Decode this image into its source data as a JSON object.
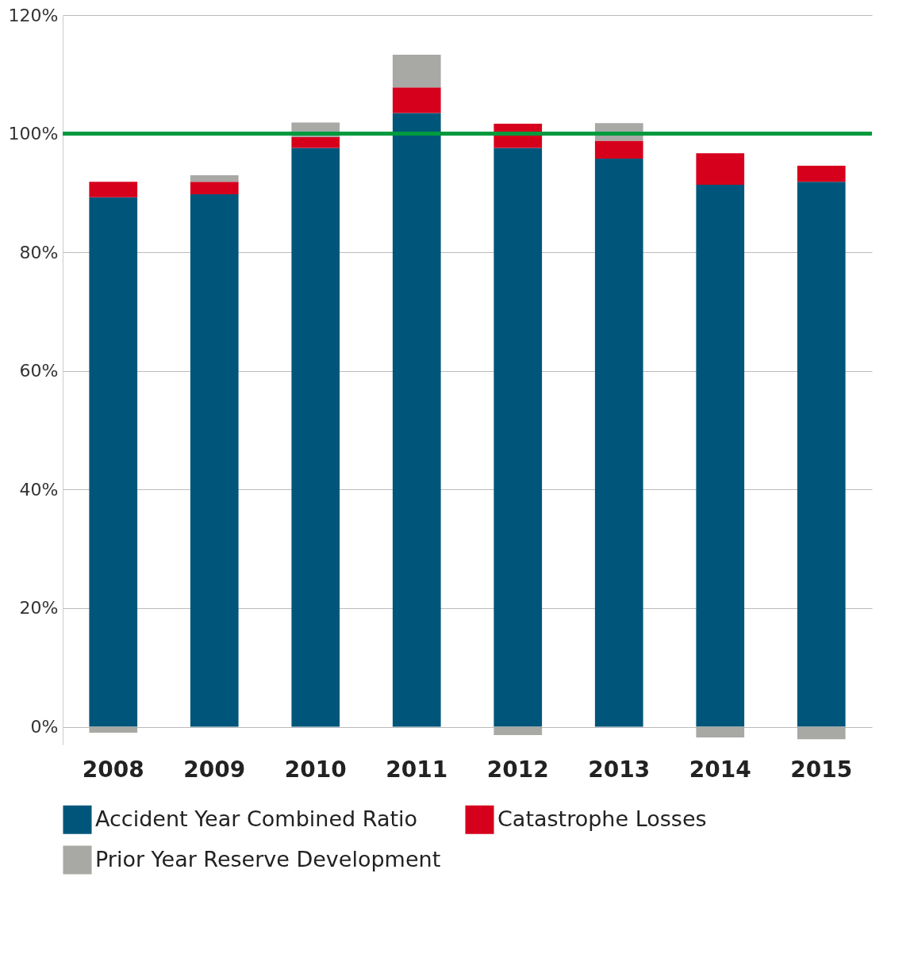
{
  "chart_data": {
    "type": "bar",
    "stacked": true,
    "categories": [
      "2008",
      "2009",
      "2010",
      "2011",
      "2012",
      "2013",
      "2014",
      "2015"
    ],
    "series": [
      {
        "name": "Accident Year Combined Ratio",
        "color": "#00567a",
        "values": [
          89.3,
          89.8,
          97.6,
          103.5,
          97.6,
          95.8,
          91.4,
          91.9
        ]
      },
      {
        "name": "Catastrophe Losses",
        "color": "#d6001c",
        "values": [
          2.6,
          2.1,
          1.8,
          4.3,
          4.1,
          3.0,
          5.3,
          2.7
        ]
      },
      {
        "name": "Prior Year Reserve Development",
        "color": "#a8a8a4",
        "values": [
          -1.0,
          1.1,
          2.5,
          5.5,
          -1.4,
          3.0,
          -1.8,
          -2.1
        ]
      }
    ],
    "ylim": [
      -3,
      120
    ],
    "yticks": [
      {
        "value": 0,
        "label": "0%"
      },
      {
        "value": 20,
        "label": "20%"
      },
      {
        "value": 40,
        "label": "40%"
      },
      {
        "value": 60,
        "label": "60%"
      },
      {
        "value": 80,
        "label": "80%"
      },
      {
        "value": 100,
        "label": "100%"
      },
      {
        "value": 120,
        "label": "120%"
      }
    ],
    "ref_lines": [
      {
        "axis": "y",
        "value": 100,
        "color": "#009a3e"
      }
    ],
    "grid": "y",
    "legend": "bottom"
  }
}
